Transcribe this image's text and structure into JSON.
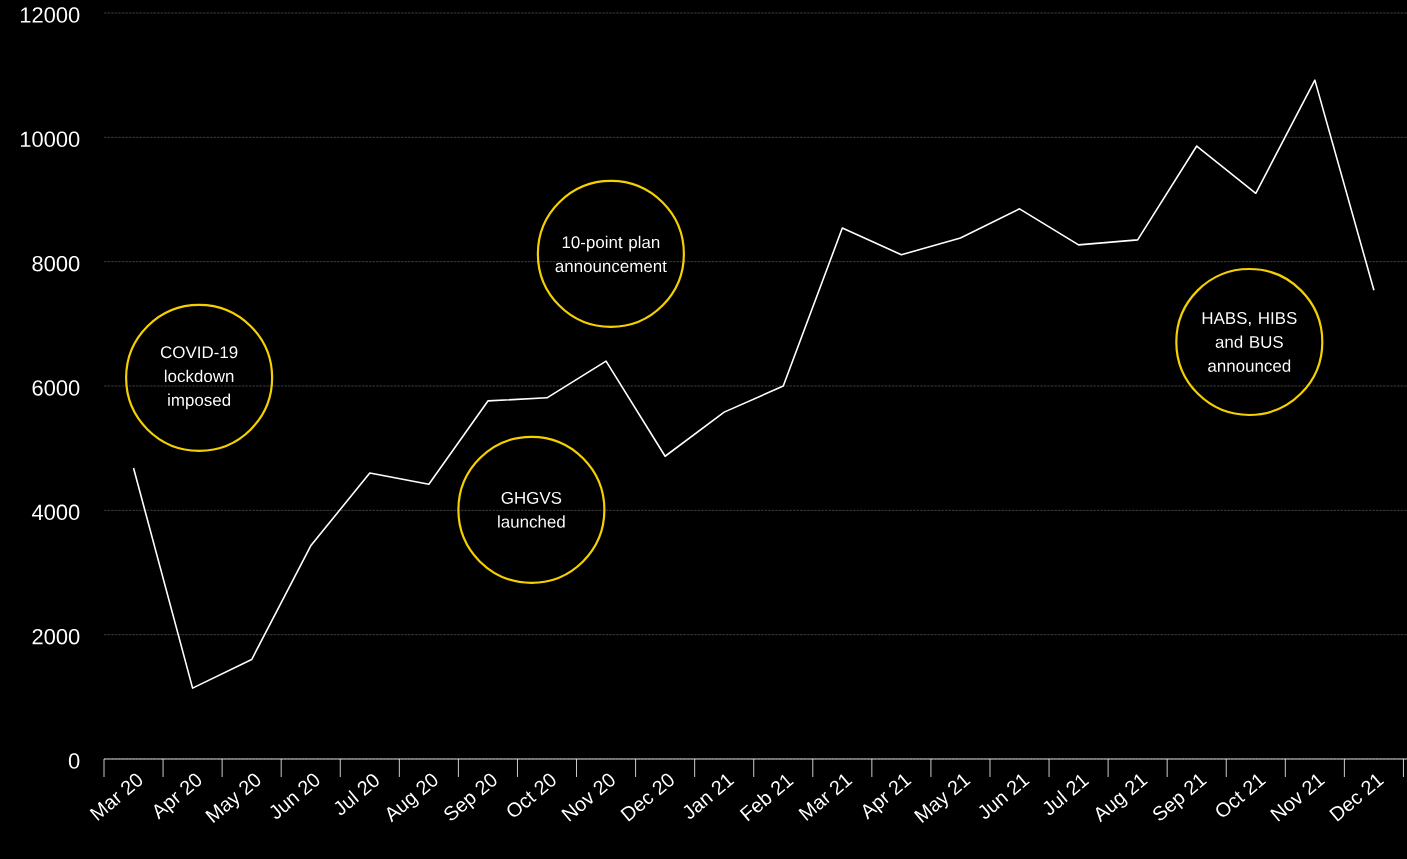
{
  "chart_data": {
    "type": "line",
    "categories": [
      "Mar 20",
      "Apr 20",
      "May 20",
      "Jun 20",
      "Jul 20",
      "Aug 20",
      "Sep 20",
      "Oct 20",
      "Nov 20",
      "Dec 20",
      "Jan 21",
      "Feb 21",
      "Mar 21",
      "Apr 21",
      "May 21",
      "Jun 21",
      "Jul 21",
      "Aug 21",
      "Sep 21",
      "Oct 21",
      "Nov 21",
      "Dec 21"
    ],
    "series": [
      {
        "color": "#ffffff",
        "values": [
          4680,
          1140,
          1600,
          3430,
          4600,
          4420,
          5760,
          5810,
          6400,
          4870,
          5580,
          6000,
          8540,
          8110,
          8380,
          8850,
          8270,
          8350,
          9860,
          9100,
          10920,
          7540
        ]
      }
    ],
    "ylim": [
      0,
      12000
    ],
    "yticks": [
      0,
      2000,
      4000,
      6000,
      8000,
      10000,
      12000
    ],
    "grid": "y",
    "annotations": [
      "COVID-19 lockdown imposed",
      "GHGVS launched",
      "10-point plan announcement",
      "HABS, HIBS and BUS announced"
    ]
  }
}
